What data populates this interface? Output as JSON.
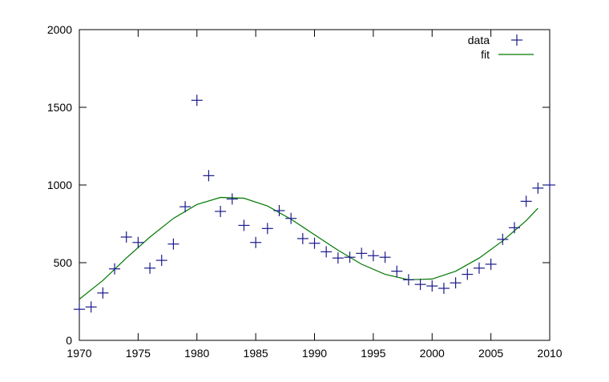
{
  "chart_data": {
    "type": "scatter",
    "title": "",
    "xlabel": "",
    "ylabel": "",
    "xlim": [
      1970,
      2010
    ],
    "ylim": [
      0,
      2000
    ],
    "x_ticks": [
      1970,
      1975,
      1980,
      1985,
      1990,
      1995,
      2000,
      2005,
      2010
    ],
    "y_ticks": [
      0,
      500,
      1000,
      1500,
      2000
    ],
    "grid": false,
    "legend_position": "top-right",
    "series": [
      {
        "name": "data",
        "style": "points",
        "marker": "plus",
        "color": "#1a1a8c",
        "x": [
          1970,
          1971,
          1972,
          1973,
          1974,
          1975,
          1976,
          1977,
          1978,
          1979,
          1980,
          1981,
          1982,
          1983,
          1984,
          1985,
          1986,
          1987,
          1988,
          1989,
          1990,
          1991,
          1992,
          1993,
          1994,
          1995,
          1996,
          1997,
          1998,
          1999,
          2000,
          2001,
          2002,
          2003,
          2004,
          2005,
          2006,
          2007,
          2008,
          2009,
          2010
        ],
        "y": [
          200,
          215,
          305,
          460,
          665,
          630,
          465,
          515,
          620,
          860,
          1545,
          1060,
          830,
          910,
          740,
          630,
          720,
          835,
          785,
          655,
          625,
          570,
          530,
          535,
          560,
          545,
          535,
          445,
          390,
          360,
          350,
          335,
          370,
          425,
          465,
          490,
          650,
          725,
          895,
          980,
          1000
        ]
      },
      {
        "name": "fit",
        "style": "line",
        "color": "#007700",
        "x": [
          1970,
          1972,
          1974,
          1976,
          1978,
          1980,
          1982,
          1984,
          1986,
          1988,
          1990,
          1992,
          1994,
          1996,
          1998,
          2000,
          2002,
          2004,
          2006,
          2008,
          2009
        ],
        "y": [
          265,
          385,
          530,
          665,
          785,
          875,
          920,
          915,
          865,
          780,
          680,
          580,
          490,
          425,
          390,
          395,
          445,
          530,
          640,
          770,
          850
        ]
      }
    ]
  }
}
